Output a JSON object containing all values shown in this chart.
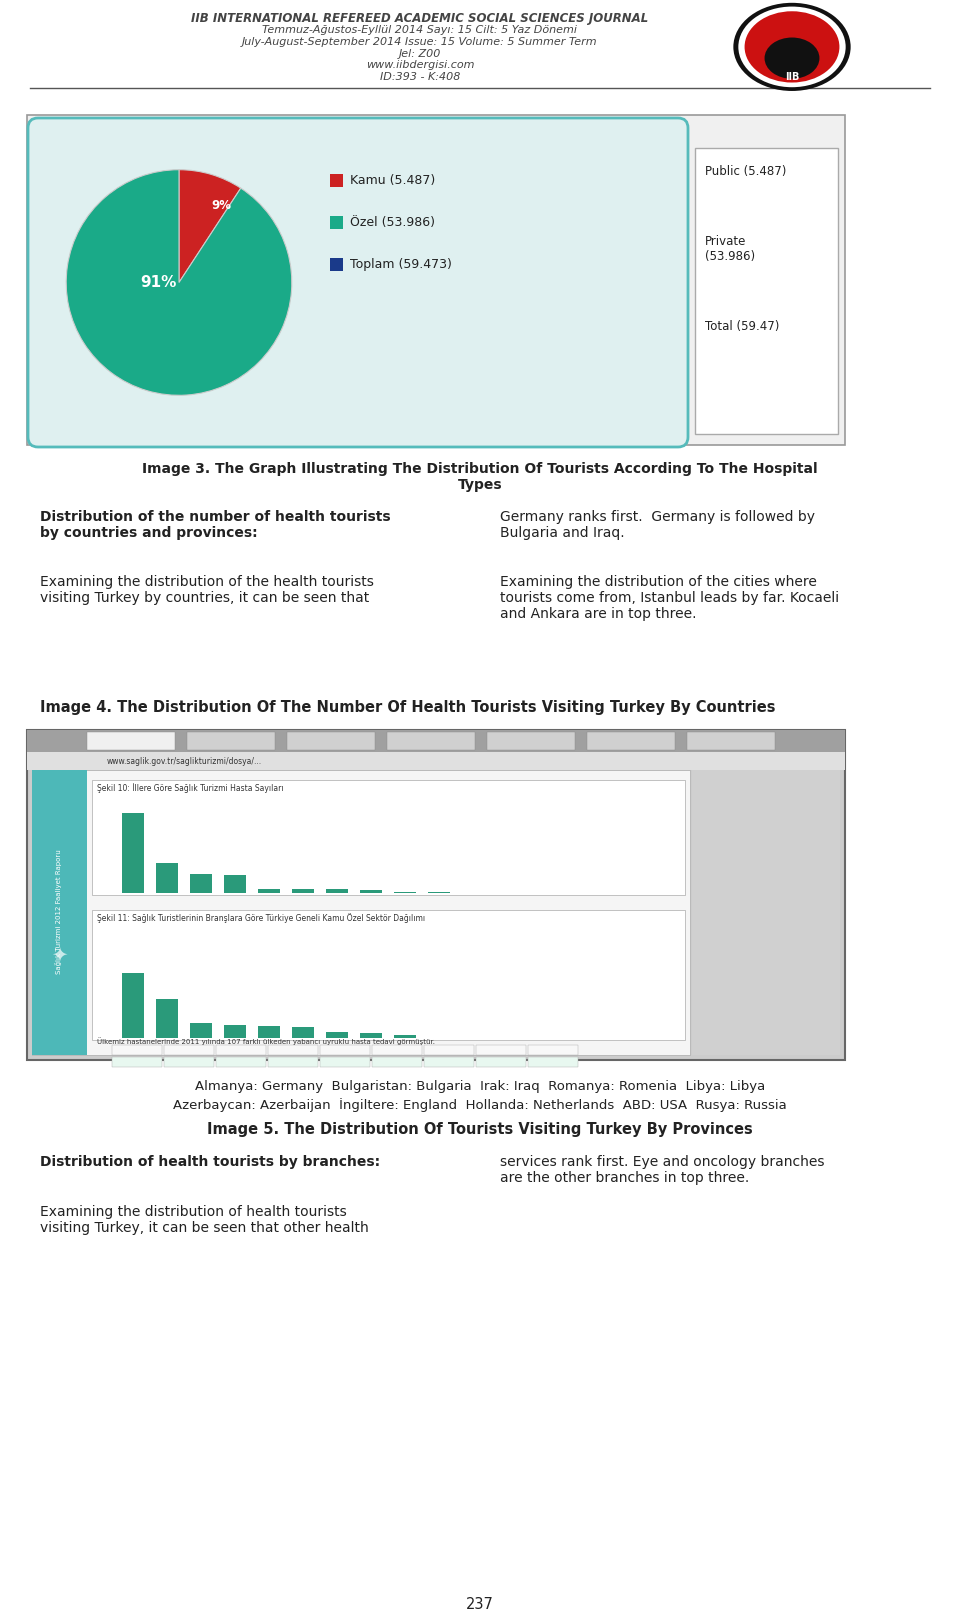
{
  "header_line1": "IIB INTERNATIONAL REFEREED ACADEMIC SOCIAL SCIENCES JOURNAL",
  "header_line2": "Temmuz-Ağustos-Eyllül 2014 Sayı: 15 Cilt: 5 Yaz Dönemi",
  "header_line3": "July-August-September 2014 Issue: 15 Volume: 5 Summer Term",
  "header_line4": "Jel: Z00",
  "header_line5": "www.iibdergisi.com",
  "header_line6": "ID:393 - K:408",
  "pie_values": [
    5.487,
    53.986
  ],
  "pie_labels_tr": [
    "Kamu (5.487)",
    "Özel (53.986)",
    "Toplam (59.473)"
  ],
  "pie_colors": [
    "#cc2222",
    "#1aaa88"
  ],
  "pie_third_color": "#1a3a8a",
  "pie_pct_large": "91%",
  "pie_pct_small": "9%",
  "pie_legend_right": [
    "Public (5.487)",
    "Private\n(53.986)",
    "Total (59.47)"
  ],
  "image3_caption_line1": "Image 3. The Graph Illustrating The Distribution Of Tourists According To The Hospital",
  "image3_caption_line2": "Types",
  "col1_bold": "Distribution of the number of health tourists\nby countries and provinces:",
  "col2_para1": "Germany ranks first.  Germany is followed by\nBulgaria and Iraq.",
  "col1_para1": "Examining the distribution of the health tourists\nvisiting Turkey by countries, it can be seen that",
  "col2_para2": "Examining the distribution of the cities where\ntourists come from, Istanbul leads by far. Kocaeli\nand Ankara are in top three.",
  "image4_caption": "Image 4. The Distribution Of The Number Of Health Tourists Visiting Turkey By Countries",
  "image4_note1": "Almanya: Germany  Bulgaristan: Bulgaria  Irak: Iraq  Romanya: Romenia  Libya: Libya",
  "image4_note2": "Azerbaycan: Azerbaijan  İngiltere: England  Hollanda: Netherlands  ABD: USA  Rusya: Russia",
  "image5_caption": "Image 5. The Distribution Of Tourists Visiting Turkey By Provinces",
  "col1_bold2": "Distribution of health tourists by branches:",
  "col1_para2": "Examining the distribution of health tourists\nvisiting Turkey, it can be seen that other health",
  "col2_text2": "services rank first. Eye and oncology branches\nare the other branches in top three.",
  "page_number": "237",
  "bg_color": "#ffffff",
  "text_color": "#222222",
  "header_color": "#444444",
  "outer_box_fill": "#f0f0f0",
  "outer_box_border": "#999999",
  "inner_box_fill": "#dff0f0",
  "inner_box_border": "#55bbbb",
  "right_box_border": "#aaaaaa",
  "screenshot_bg": "#cccccc",
  "screenshot_border": "#666666",
  "browser_bar": "#bbbbbb",
  "teal_sidebar": "#4db8b8",
  "chart_bar_color": "#2a9a7a",
  "chart_bg": "#e8e8e8"
}
